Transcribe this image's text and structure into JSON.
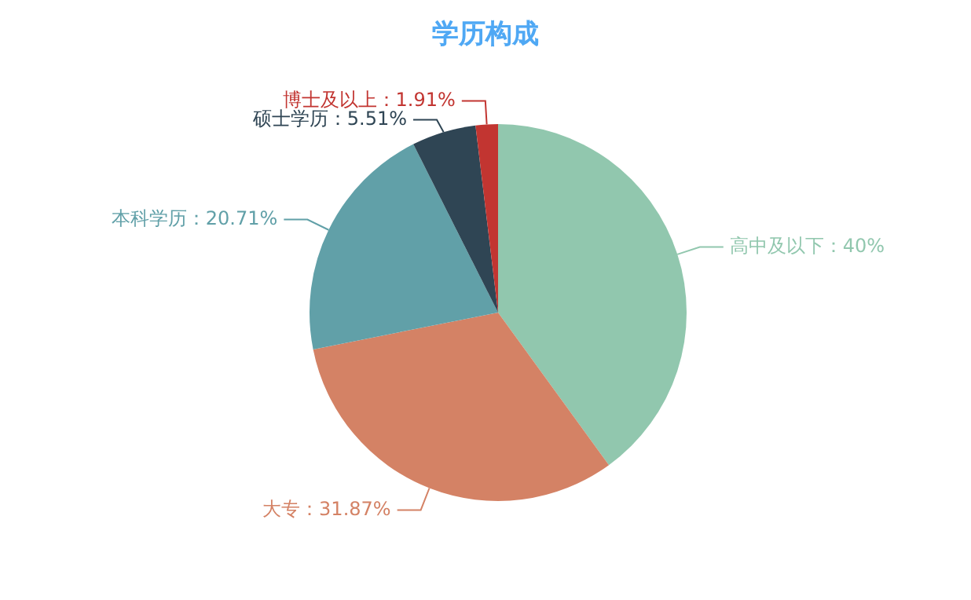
{
  "chart_data": {
    "type": "pie",
    "title": "学历构成",
    "categories": [
      "高中及以下",
      "大专",
      "本科学历",
      "硕士学历",
      "博士及以上"
    ],
    "values": [
      40,
      31.87,
      20.71,
      5.51,
      1.91
    ],
    "value_labels": [
      "40%",
      "31.87%",
      "20.71%",
      "5.51%",
      "1.91%"
    ],
    "colors": [
      "#91c7ae",
      "#d48265",
      "#61a0a8",
      "#2f4554",
      "#c23531"
    ],
    "legend": false
  }
}
